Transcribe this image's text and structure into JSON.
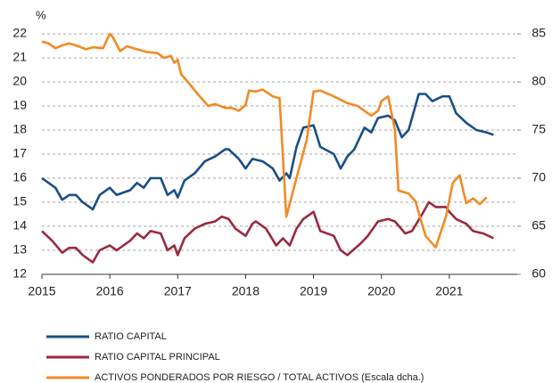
{
  "chart_data": {
    "type": "line",
    "y_label": "%",
    "xlim": [
      2015,
      2022
    ],
    "xticks": [
      2015,
      2016,
      2017,
      2018,
      2019,
      2020,
      2021
    ],
    "ylim": [
      12,
      22
    ],
    "yticks": [
      12,
      13,
      14,
      15,
      16,
      17,
      18,
      19,
      20,
      21,
      22
    ],
    "y2lim": [
      60,
      85
    ],
    "y2ticks": [
      60,
      65,
      70,
      75,
      80,
      85
    ],
    "grid": true,
    "series": [
      {
        "name": "RATIO CAPITAL",
        "color": "#1a4f86",
        "x": [
          2015.0,
          2015.2,
          2015.3,
          2015.4,
          2015.5,
          2015.6,
          2015.75,
          2015.85,
          2016.0,
          2016.1,
          2016.3,
          2016.4,
          2016.5,
          2016.6,
          2016.75,
          2016.85,
          2016.95,
          2017.0,
          2017.1,
          2017.25,
          2017.4,
          2017.55,
          2017.7,
          2017.75,
          2017.9,
          2018.0,
          2018.1,
          2018.25,
          2018.4,
          2018.5,
          2018.6,
          2018.65,
          2018.75,
          2018.85,
          2019.0,
          2019.1,
          2019.3,
          2019.4,
          2019.5,
          2019.6,
          2019.75,
          2019.85,
          2019.95,
          2020.1,
          2020.2,
          2020.3,
          2020.4,
          2020.55,
          2020.65,
          2020.75,
          2020.9,
          2021.0,
          2021.1,
          2021.25,
          2021.4,
          2021.55,
          2021.65
        ],
        "values": [
          16.0,
          15.6,
          15.1,
          15.3,
          15.3,
          15.0,
          14.7,
          15.3,
          15.6,
          15.3,
          15.5,
          15.8,
          15.6,
          16.0,
          16.0,
          15.3,
          15.5,
          15.2,
          15.9,
          16.2,
          16.7,
          16.9,
          17.2,
          17.2,
          16.8,
          16.4,
          16.8,
          16.7,
          16.4,
          15.9,
          16.2,
          16.0,
          17.3,
          18.1,
          18.2,
          17.3,
          17.0,
          16.4,
          16.9,
          17.2,
          18.1,
          17.9,
          18.5,
          18.6,
          18.4,
          17.7,
          18.0,
          19.5,
          19.5,
          19.2,
          19.4,
          19.4,
          18.7,
          18.3,
          18.0,
          17.9,
          17.8
        ]
      },
      {
        "name": "RATIO CAPITAL PRINCIPAL",
        "color": "#9a2a3f",
        "x": [
          2015.0,
          2015.15,
          2015.3,
          2015.4,
          2015.5,
          2015.6,
          2015.75,
          2015.85,
          2016.0,
          2016.1,
          2016.3,
          2016.4,
          2016.5,
          2016.6,
          2016.75,
          2016.85,
          2016.95,
          2017.0,
          2017.1,
          2017.25,
          2017.4,
          2017.55,
          2017.65,
          2017.75,
          2017.85,
          2018.0,
          2018.1,
          2018.15,
          2018.3,
          2018.45,
          2018.55,
          2018.65,
          2018.75,
          2018.85,
          2019.0,
          2019.1,
          2019.3,
          2019.4,
          2019.5,
          2019.7,
          2019.8,
          2019.95,
          2020.1,
          2020.2,
          2020.35,
          2020.45,
          2020.6,
          2020.7,
          2020.8,
          2020.95,
          2021.0,
          2021.1,
          2021.25,
          2021.35,
          2021.5,
          2021.65
        ],
        "values": [
          13.8,
          13.4,
          12.9,
          13.1,
          13.1,
          12.8,
          12.5,
          13.0,
          13.2,
          13.0,
          13.4,
          13.7,
          13.5,
          13.8,
          13.7,
          13.0,
          13.2,
          12.8,
          13.5,
          13.9,
          14.1,
          14.2,
          14.4,
          14.3,
          13.9,
          13.6,
          14.1,
          14.2,
          13.9,
          13.2,
          13.5,
          13.2,
          13.9,
          14.3,
          14.6,
          13.8,
          13.6,
          13.0,
          12.8,
          13.3,
          13.6,
          14.2,
          14.3,
          14.2,
          13.7,
          13.8,
          14.5,
          15.0,
          14.8,
          14.8,
          14.6,
          14.3,
          14.1,
          13.8,
          13.7,
          13.5
        ]
      },
      {
        "name": "ACTIVOS PONDERADOS POR RIESGO / TOTAL ACTIVOS (Escala dcha.)",
        "color": "#f28a24",
        "axis": "y2",
        "x": [
          2015.0,
          2015.1,
          2015.2,
          2015.3,
          2015.4,
          2015.5,
          2015.65,
          2015.75,
          2015.9,
          2016.0,
          2016.05,
          2016.15,
          2016.25,
          2016.4,
          2016.55,
          2016.7,
          2016.8,
          2016.9,
          2016.95,
          2017.0,
          2017.05,
          2017.15,
          2017.3,
          2017.45,
          2017.55,
          2017.7,
          2017.8,
          2017.9,
          2018.0,
          2018.05,
          2018.15,
          2018.25,
          2018.4,
          2018.5,
          2018.6,
          2018.75,
          2018.9,
          2019.0,
          2019.1,
          2019.3,
          2019.5,
          2019.65,
          2019.75,
          2019.85,
          2019.95,
          2020.0,
          2020.1,
          2020.2,
          2020.25,
          2020.4,
          2020.5,
          2020.65,
          2020.8,
          2020.95,
          2021.05,
          2021.15,
          2021.25,
          2021.35,
          2021.45,
          2021.55
        ],
        "values": [
          84.2,
          84.0,
          83.5,
          83.8,
          84.0,
          83.8,
          83.4,
          83.6,
          83.5,
          85.0,
          84.6,
          83.2,
          83.7,
          83.4,
          83.1,
          83.0,
          82.5,
          82.7,
          82.0,
          82.3,
          80.8,
          80.0,
          78.7,
          77.5,
          77.7,
          77.3,
          77.3,
          77.0,
          77.6,
          79.1,
          79.0,
          79.2,
          78.5,
          78.3,
          66.0,
          70.0,
          74.0,
          79.0,
          79.1,
          78.5,
          77.8,
          77.5,
          77.0,
          76.5,
          77.0,
          78.0,
          78.5,
          75.0,
          68.7,
          68.4,
          67.6,
          64.0,
          62.8,
          66.0,
          69.5,
          70.3,
          67.4,
          67.9,
          67.3,
          68.0
        ]
      }
    ]
  }
}
